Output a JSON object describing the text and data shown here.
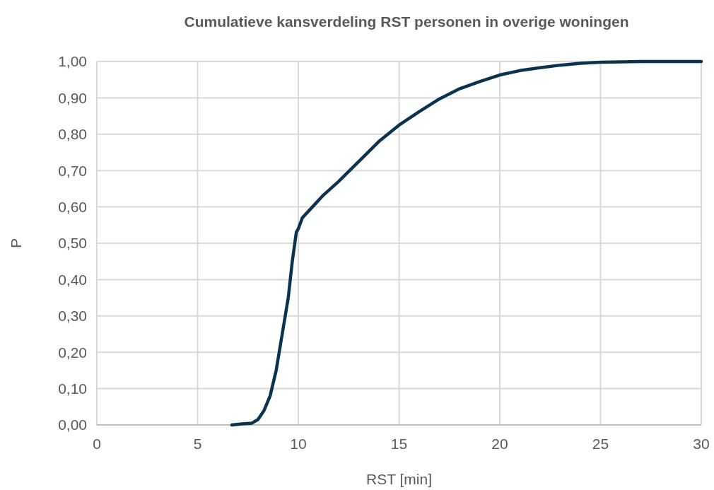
{
  "chart_data": {
    "type": "line",
    "title": "Cumulatieve kansverdeling RST personen in overige woningen",
    "xlabel": "RST [min]",
    "ylabel": "P",
    "series": [
      {
        "color": "#0b3350",
        "x": [
          6.7,
          7.2,
          7.7,
          8.0,
          8.3,
          8.6,
          8.9,
          9.2,
          9.5,
          9.7,
          9.9,
          10.0,
          10.2,
          10.7,
          11.2,
          12,
          13,
          14,
          15,
          16,
          17,
          18,
          19,
          20,
          21,
          22,
          23,
          24,
          25,
          27,
          30
        ],
        "values": [
          0,
          0.003,
          0.005,
          0.015,
          0.04,
          0.08,
          0.15,
          0.25,
          0.35,
          0.45,
          0.53,
          0.54,
          0.57,
          0.6,
          0.63,
          0.67,
          0.725,
          0.78,
          0.825,
          0.862,
          0.897,
          0.925,
          0.945,
          0.963,
          0.975,
          0.983,
          0.99,
          0.995,
          0.998,
          1.0,
          1.0
        ]
      }
    ],
    "xlim": [
      0,
      30
    ],
    "xticks": [
      0,
      5,
      10,
      15,
      20,
      25,
      30
    ],
    "ylim": [
      0,
      1
    ],
    "yticks": [
      {
        "value": 0,
        "label": "0,00"
      },
      {
        "value": 0.1,
        "label": "0,10"
      },
      {
        "value": 0.2,
        "label": "0,20"
      },
      {
        "value": 0.3,
        "label": "0,30"
      },
      {
        "value": 0.4,
        "label": "0,40"
      },
      {
        "value": 0.5,
        "label": "0,50"
      },
      {
        "value": 0.6,
        "label": "0,60"
      },
      {
        "value": 0.7,
        "label": "0,70"
      },
      {
        "value": 0.8,
        "label": "0,80"
      },
      {
        "value": 0.9,
        "label": "0,90"
      },
      {
        "value": 1,
        "label": "1,00"
      }
    ],
    "grid": true,
    "marker": "none",
    "line_style": "solid"
  }
}
